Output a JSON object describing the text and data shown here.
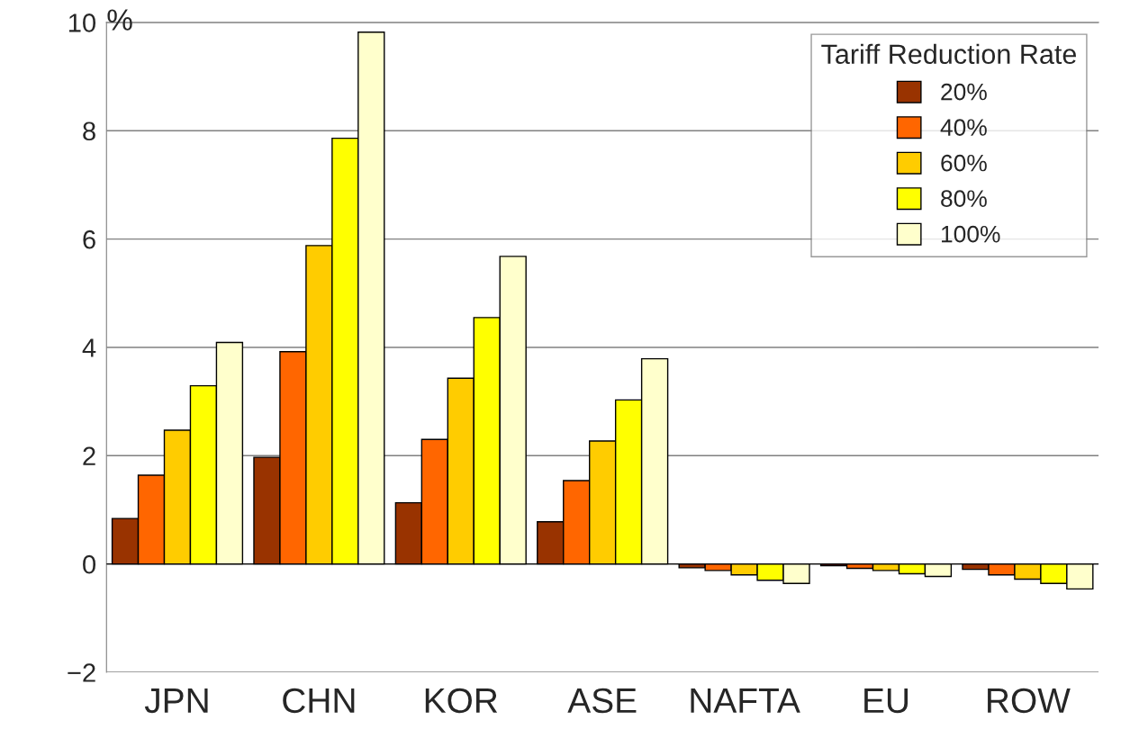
{
  "chart_data": {
    "type": "bar",
    "ylabel": "%",
    "legend_title": "Tariff Reduction Rate",
    "categories": [
      "JPN",
      "CHN",
      "KOR",
      "ASE",
      "NAFTA",
      "EU",
      "ROW"
    ],
    "series": [
      {
        "name": "20%",
        "color": "#993300",
        "values": [
          0.84,
          1.97,
          1.13,
          0.78,
          -0.07,
          -0.03,
          -0.1
        ]
      },
      {
        "name": "40%",
        "color": "#ff6600",
        "values": [
          1.64,
          3.92,
          2.3,
          1.54,
          -0.12,
          -0.08,
          -0.2
        ]
      },
      {
        "name": "60%",
        "color": "#ffcc00",
        "values": [
          2.47,
          5.88,
          3.43,
          2.27,
          -0.2,
          -0.12,
          -0.28
        ]
      },
      {
        "name": "80%",
        "color": "#ffff00",
        "values": [
          3.29,
          7.86,
          4.55,
          3.03,
          -0.3,
          -0.18,
          -0.36
        ]
      },
      {
        "name": "100%",
        "color": "#ffffcc",
        "values": [
          4.09,
          9.82,
          5.68,
          3.79,
          -0.36,
          -0.23,
          -0.46
        ]
      }
    ],
    "ylim": [
      -2,
      10
    ],
    "yticks": [
      {
        "value": -2,
        "label": "−2"
      },
      0,
      2,
      4,
      6,
      8,
      10
    ],
    "grid": "y",
    "legend": "top right"
  }
}
